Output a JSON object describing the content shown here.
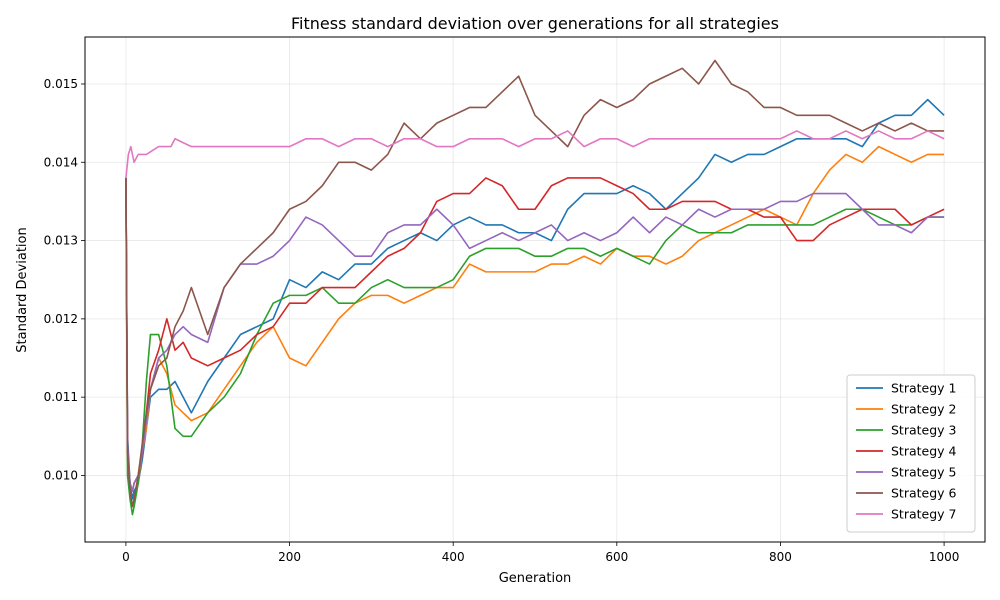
{
  "chart_data": {
    "type": "line",
    "title": "Fitness standard deviation over generations for all strategies",
    "xlabel": "Generation",
    "ylabel": "Standard Deviation",
    "xlim": [
      -50,
      1050
    ],
    "ylim": [
      0.00915,
      0.0156
    ],
    "xticks": [
      0,
      200,
      400,
      600,
      800,
      1000
    ],
    "yticks": [
      0.01,
      0.011,
      0.012,
      0.013,
      0.014,
      0.015
    ],
    "xtick_labels": [
      "0",
      "200",
      "400",
      "600",
      "800",
      "1000"
    ],
    "ytick_labels": [
      "0.010",
      "0.011",
      "0.012",
      "0.013",
      "0.014",
      "0.015"
    ],
    "grid": true,
    "legend_position": "lower-right",
    "series": [
      {
        "name": "Strategy 1",
        "color": "#1f77b4",
        "x": [
          0,
          2,
          5,
          8,
          10,
          15,
          20,
          25,
          30,
          40,
          50,
          60,
          70,
          80,
          100,
          120,
          140,
          160,
          180,
          200,
          220,
          240,
          260,
          280,
          300,
          320,
          340,
          360,
          380,
          400,
          420,
          440,
          460,
          480,
          500,
          520,
          540,
          560,
          580,
          600,
          620,
          640,
          660,
          680,
          700,
          720,
          740,
          760,
          780,
          800,
          820,
          840,
          860,
          880,
          900,
          920,
          940,
          960,
          980,
          1000
        ],
        "y": [
          0.0138,
          0.0105,
          0.0099,
          0.0097,
          0.0098,
          0.0099,
          0.0102,
          0.0106,
          0.011,
          0.0111,
          0.0111,
          0.0112,
          0.011,
          0.0108,
          0.0112,
          0.0115,
          0.0118,
          0.0119,
          0.012,
          0.0125,
          0.0124,
          0.0126,
          0.0125,
          0.0127,
          0.0127,
          0.0129,
          0.013,
          0.0131,
          0.013,
          0.0132,
          0.0133,
          0.0132,
          0.0132,
          0.0131,
          0.0131,
          0.013,
          0.0134,
          0.0136,
          0.0136,
          0.0136,
          0.0137,
          0.0136,
          0.0134,
          0.0136,
          0.0138,
          0.0141,
          0.014,
          0.0141,
          0.0141,
          0.0142,
          0.0143,
          0.0143,
          0.0143,
          0.0143,
          0.0142,
          0.0145,
          0.0146,
          0.0146,
          0.0148,
          0.0146
        ]
      },
      {
        "name": "Strategy 2",
        "color": "#ff7f0e",
        "x": [
          0,
          2,
          5,
          8,
          10,
          15,
          20,
          25,
          30,
          40,
          50,
          60,
          70,
          80,
          100,
          120,
          140,
          160,
          180,
          200,
          220,
          240,
          260,
          280,
          300,
          320,
          340,
          360,
          380,
          400,
          420,
          440,
          460,
          480,
          500,
          520,
          540,
          560,
          580,
          600,
          620,
          640,
          660,
          680,
          700,
          720,
          740,
          760,
          780,
          800,
          820,
          840,
          860,
          880,
          900,
          920,
          940,
          960,
          980,
          1000
        ],
        "y": [
          0.0138,
          0.0102,
          0.0098,
          0.0096,
          0.0097,
          0.0099,
          0.0103,
          0.0106,
          0.0111,
          0.0115,
          0.0113,
          0.0109,
          0.0108,
          0.0107,
          0.0108,
          0.0111,
          0.0114,
          0.0117,
          0.0119,
          0.0115,
          0.0114,
          0.0117,
          0.012,
          0.0122,
          0.0123,
          0.0123,
          0.0122,
          0.0123,
          0.0124,
          0.0124,
          0.0127,
          0.0126,
          0.0126,
          0.0126,
          0.0126,
          0.0127,
          0.0127,
          0.0128,
          0.0127,
          0.0129,
          0.0128,
          0.0128,
          0.0127,
          0.0128,
          0.013,
          0.0131,
          0.0132,
          0.0133,
          0.0134,
          0.0133,
          0.0132,
          0.0136,
          0.0139,
          0.0141,
          0.014,
          0.0142,
          0.0141,
          0.014,
          0.0141,
          0.0141
        ]
      },
      {
        "name": "Strategy 3",
        "color": "#2ca02c",
        "x": [
          0,
          2,
          5,
          8,
          10,
          15,
          20,
          25,
          30,
          40,
          50,
          60,
          70,
          80,
          100,
          120,
          140,
          160,
          180,
          200,
          220,
          240,
          260,
          280,
          300,
          320,
          340,
          360,
          380,
          400,
          420,
          440,
          460,
          480,
          500,
          520,
          540,
          560,
          580,
          600,
          620,
          640,
          660,
          680,
          700,
          720,
          740,
          760,
          780,
          800,
          820,
          840,
          860,
          880,
          900,
          920,
          940,
          960,
          980,
          1000
        ],
        "y": [
          0.0138,
          0.01,
          0.0097,
          0.0095,
          0.0096,
          0.0099,
          0.0104,
          0.0112,
          0.0118,
          0.0118,
          0.0114,
          0.0106,
          0.0105,
          0.0105,
          0.0108,
          0.011,
          0.0113,
          0.0118,
          0.0122,
          0.0123,
          0.0123,
          0.0124,
          0.0122,
          0.0122,
          0.0124,
          0.0125,
          0.0124,
          0.0124,
          0.0124,
          0.0125,
          0.0128,
          0.0129,
          0.0129,
          0.0129,
          0.0128,
          0.0128,
          0.0129,
          0.0129,
          0.0128,
          0.0129,
          0.0128,
          0.0127,
          0.013,
          0.0132,
          0.0131,
          0.0131,
          0.0131,
          0.0132,
          0.0132,
          0.0132,
          0.0132,
          0.0132,
          0.0133,
          0.0134,
          0.0134,
          0.0133,
          0.0132,
          0.0132,
          0.0133,
          0.0133
        ]
      },
      {
        "name": "Strategy 4",
        "color": "#d62728",
        "x": [
          0,
          2,
          5,
          8,
          10,
          15,
          20,
          25,
          30,
          40,
          50,
          60,
          70,
          80,
          100,
          120,
          140,
          160,
          180,
          200,
          220,
          240,
          260,
          280,
          300,
          320,
          340,
          360,
          380,
          400,
          420,
          440,
          460,
          480,
          500,
          520,
          540,
          560,
          580,
          600,
          620,
          640,
          660,
          680,
          700,
          720,
          740,
          760,
          780,
          800,
          820,
          840,
          860,
          880,
          900,
          920,
          940,
          960,
          980,
          1000
        ],
        "y": [
          0.0138,
          0.0103,
          0.0099,
          0.0098,
          0.0099,
          0.01,
          0.0103,
          0.0108,
          0.0113,
          0.0116,
          0.012,
          0.0116,
          0.0117,
          0.0115,
          0.0114,
          0.0115,
          0.0116,
          0.0118,
          0.0119,
          0.0122,
          0.0122,
          0.0124,
          0.0124,
          0.0124,
          0.0126,
          0.0128,
          0.0129,
          0.0131,
          0.0135,
          0.0136,
          0.0136,
          0.0138,
          0.0137,
          0.0134,
          0.0134,
          0.0137,
          0.0138,
          0.0138,
          0.0138,
          0.0137,
          0.0136,
          0.0134,
          0.0134,
          0.0135,
          0.0135,
          0.0135,
          0.0134,
          0.0134,
          0.0133,
          0.0133,
          0.013,
          0.013,
          0.0132,
          0.0133,
          0.0134,
          0.0134,
          0.0134,
          0.0132,
          0.0133,
          0.0134
        ]
      },
      {
        "name": "Strategy 5",
        "color": "#9467bd",
        "x": [
          0,
          2,
          5,
          8,
          10,
          15,
          20,
          25,
          30,
          40,
          50,
          60,
          70,
          80,
          100,
          120,
          140,
          160,
          180,
          200,
          220,
          240,
          260,
          280,
          300,
          320,
          340,
          360,
          380,
          400,
          420,
          440,
          460,
          480,
          500,
          520,
          540,
          560,
          580,
          600,
          620,
          640,
          660,
          680,
          700,
          720,
          740,
          760,
          780,
          800,
          820,
          840,
          860,
          880,
          900,
          920,
          940,
          960,
          980,
          1000
        ],
        "y": [
          0.0138,
          0.0104,
          0.0099,
          0.0098,
          0.0099,
          0.01,
          0.0103,
          0.0107,
          0.0111,
          0.0115,
          0.0116,
          0.0118,
          0.0119,
          0.0118,
          0.0117,
          0.0124,
          0.0127,
          0.0127,
          0.0128,
          0.013,
          0.0133,
          0.0132,
          0.013,
          0.0128,
          0.0128,
          0.0131,
          0.0132,
          0.0132,
          0.0134,
          0.0132,
          0.0129,
          0.013,
          0.0131,
          0.013,
          0.0131,
          0.0132,
          0.013,
          0.0131,
          0.013,
          0.0131,
          0.0133,
          0.0131,
          0.0133,
          0.0132,
          0.0134,
          0.0133,
          0.0134,
          0.0134,
          0.0134,
          0.0135,
          0.0135,
          0.0136,
          0.0136,
          0.0136,
          0.0134,
          0.0132,
          0.0132,
          0.0131,
          0.0133,
          0.0133
        ]
      },
      {
        "name": "Strategy 6",
        "color": "#8c564b",
        "x": [
          0,
          2,
          5,
          8,
          10,
          15,
          20,
          25,
          30,
          40,
          50,
          60,
          70,
          80,
          100,
          120,
          140,
          160,
          180,
          200,
          220,
          240,
          260,
          280,
          300,
          320,
          340,
          360,
          380,
          400,
          420,
          440,
          460,
          480,
          500,
          520,
          540,
          560,
          580,
          600,
          620,
          640,
          660,
          680,
          700,
          720,
          740,
          760,
          780,
          800,
          820,
          840,
          860,
          880,
          900,
          920,
          940,
          960,
          980,
          1000
        ],
        "y": [
          0.0138,
          0.0103,
          0.0098,
          0.0096,
          0.0097,
          0.01,
          0.0104,
          0.0108,
          0.0111,
          0.0114,
          0.0115,
          0.0119,
          0.0121,
          0.0124,
          0.0118,
          0.0124,
          0.0127,
          0.0129,
          0.0131,
          0.0134,
          0.0135,
          0.0137,
          0.014,
          0.014,
          0.0139,
          0.0141,
          0.0145,
          0.0143,
          0.0145,
          0.0146,
          0.0147,
          0.0147,
          0.0149,
          0.0151,
          0.0146,
          0.0144,
          0.0142,
          0.0146,
          0.0148,
          0.0147,
          0.0148,
          0.015,
          0.0151,
          0.0152,
          0.015,
          0.0153,
          0.015,
          0.0149,
          0.0147,
          0.0147,
          0.0146,
          0.0146,
          0.0146,
          0.0145,
          0.0144,
          0.0145,
          0.0144,
          0.0145,
          0.0144,
          0.0144
        ]
      },
      {
        "name": "Strategy 7",
        "color": "#e377c2",
        "x": [
          0,
          3,
          6,
          10,
          15,
          25,
          40,
          55,
          60,
          80,
          100,
          120,
          140,
          160,
          180,
          200,
          220,
          240,
          260,
          280,
          300,
          320,
          340,
          360,
          380,
          400,
          420,
          440,
          460,
          480,
          500,
          520,
          540,
          560,
          580,
          600,
          620,
          640,
          660,
          680,
          700,
          720,
          740,
          760,
          780,
          800,
          820,
          840,
          860,
          880,
          900,
          920,
          940,
          960,
          980,
          1000
        ],
        "y": [
          0.0138,
          0.0141,
          0.0142,
          0.014,
          0.0141,
          0.0141,
          0.0142,
          0.0142,
          0.0143,
          0.0142,
          0.0142,
          0.0142,
          0.0142,
          0.0142,
          0.0142,
          0.0142,
          0.0143,
          0.0143,
          0.0142,
          0.0143,
          0.0143,
          0.0142,
          0.0143,
          0.0143,
          0.0142,
          0.0142,
          0.0143,
          0.0143,
          0.0143,
          0.0142,
          0.0143,
          0.0143,
          0.0144,
          0.0142,
          0.0143,
          0.0143,
          0.0142,
          0.0143,
          0.0143,
          0.0143,
          0.0143,
          0.0143,
          0.0143,
          0.0143,
          0.0143,
          0.0143,
          0.0144,
          0.0143,
          0.0143,
          0.0144,
          0.0143,
          0.0144,
          0.0143,
          0.0143,
          0.0144,
          0.0143
        ]
      }
    ]
  }
}
